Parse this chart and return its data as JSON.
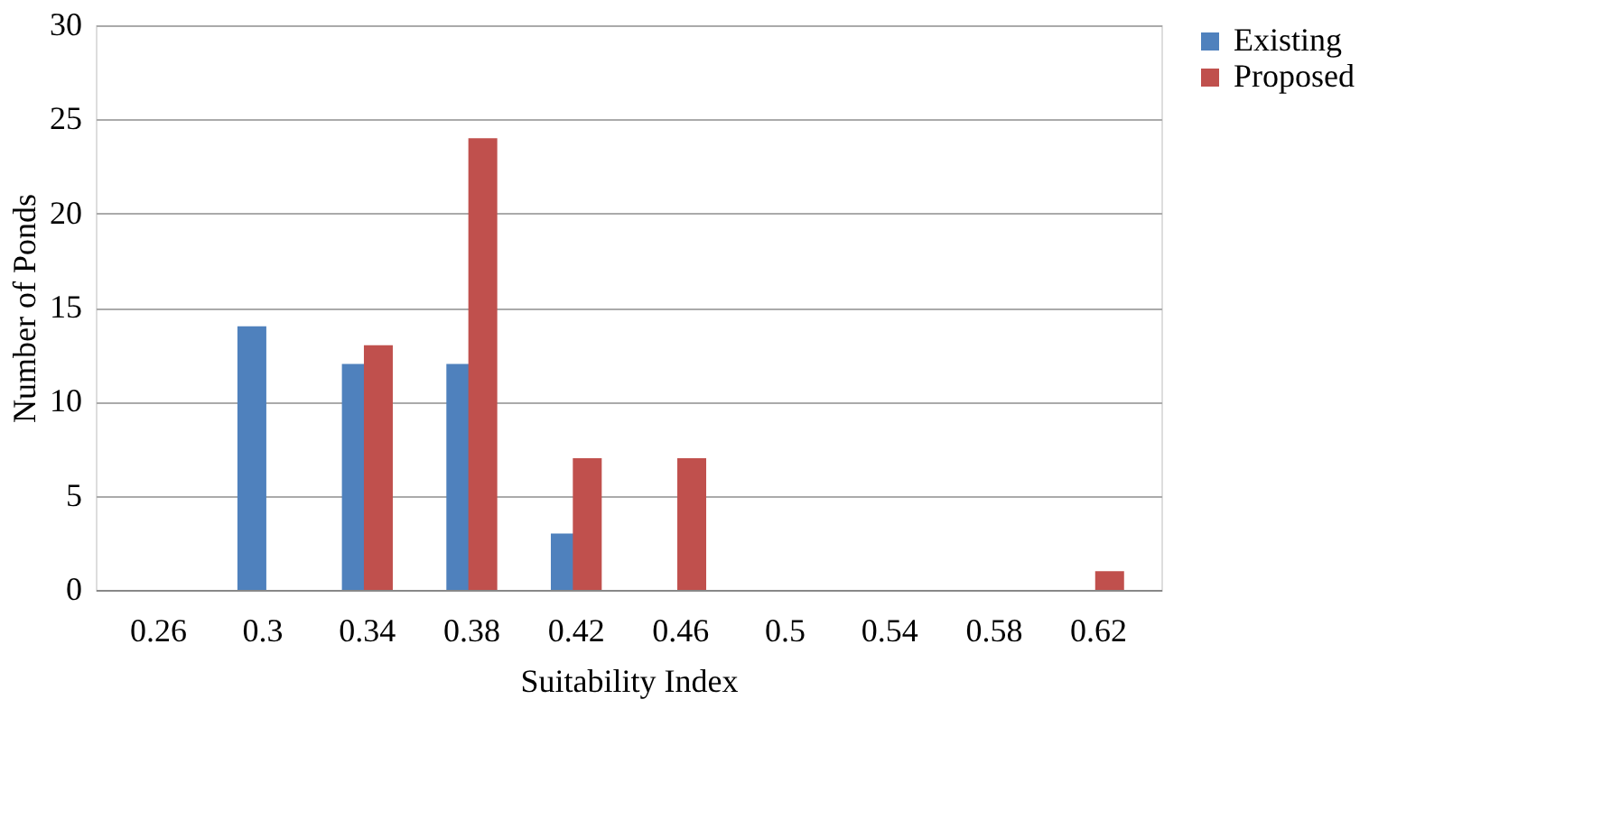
{
  "chart_data": {
    "type": "bar",
    "xlabel": "Suitability Index",
    "ylabel": "Number of Ponds",
    "categories": [
      "0.26",
      "0.3",
      "0.34",
      "0.38",
      "0.42",
      "0.46",
      "0.5",
      "0.54",
      "0.58",
      "0.62"
    ],
    "series": [
      {
        "name": "Existing",
        "color": "#4f81bd",
        "values": [
          0,
          14,
          12,
          12,
          3,
          0,
          0,
          0,
          0,
          0
        ]
      },
      {
        "name": "Proposed",
        "color": "#c0504d",
        "values": [
          0,
          0,
          13,
          24,
          7,
          7,
          0,
          0,
          0,
          1
        ]
      }
    ],
    "ylim": [
      0,
      30
    ],
    "yticks": [
      0,
      5,
      10,
      15,
      20,
      25,
      30
    ],
    "grid": "y",
    "legend": "right"
  }
}
